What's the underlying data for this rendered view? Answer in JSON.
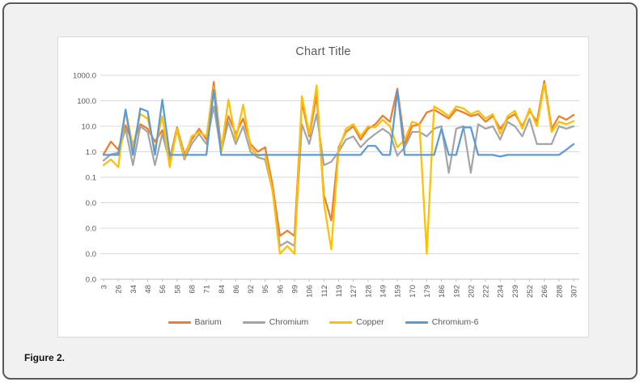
{
  "figure": {
    "caption": "Figure 2."
  },
  "colors": {
    "panel_bg": "#f1f1f2",
    "panel_border": "#58595b",
    "chart_bg": "#ffffff",
    "chart_border": "#d9d9d9",
    "grid": "#d9d9d9",
    "axis": "#bfbfbf",
    "text": "#595959"
  },
  "chart_data": {
    "type": "line",
    "title": "Chart Title",
    "xlabel": "",
    "ylabel": "",
    "y_scale": "log",
    "grid": true,
    "legend_position": "bottom",
    "y_tick_labels": [
      "1000.0",
      "100.0",
      "10.0",
      "1.0",
      "0.1",
      "0.0",
      "0.0",
      "0.0",
      "0.0"
    ],
    "y_tick_values": [
      1000,
      100,
      10,
      1,
      0.1,
      0.01,
      0.001,
      0.0001,
      1e-05
    ],
    "ylim": [
      1e-05,
      1000
    ],
    "x_tick_labels": [
      "3",
      "26",
      "34",
      "48",
      "56",
      "58",
      "68",
      "71",
      "84",
      "86",
      "92",
      "95",
      "96",
      "99",
      "106",
      "112",
      "119",
      "127",
      "128",
      "149",
      "159",
      "170",
      "179",
      "186",
      "192",
      "202",
      "222",
      "234",
      "239",
      "252",
      "266",
      "288",
      "307"
    ],
    "x_label_interval": 2,
    "points_per_series": 65,
    "series": [
      {
        "name": "Barium",
        "color": "#ED7D31",
        "values": [
          0.8,
          2.5,
          1.2,
          11,
          2,
          12,
          8,
          2.5,
          7,
          0.5,
          9,
          0.8,
          3,
          8,
          3,
          550,
          1.5,
          25,
          5,
          20,
          2,
          1,
          1.5,
          0.05,
          0.0005,
          0.0008,
          0.0005,
          90,
          4,
          160,
          0.02,
          0.002,
          1.5,
          6,
          10,
          3,
          8,
          12,
          26,
          15,
          300,
          2,
          10,
          12,
          35,
          45,
          30,
          20,
          45,
          35,
          25,
          30,
          15,
          25,
          8,
          20,
          30,
          10,
          40,
          15,
          600,
          8,
          25,
          18,
          28
        ]
      },
      {
        "name": "Chromium",
        "color": "#A5A5A5",
        "values": [
          0.45,
          0.8,
          0.9,
          8,
          0.3,
          10,
          6,
          0.3,
          5,
          0.4,
          7,
          0.5,
          2,
          5,
          2,
          60,
          1,
          15,
          2,
          10,
          1,
          0.6,
          0.5,
          0.03,
          0.0002,
          0.0003,
          0.0002,
          12,
          2,
          30,
          0.3,
          0.4,
          1,
          3,
          4,
          1.5,
          3,
          5,
          8,
          5,
          0.7,
          1.5,
          6,
          6,
          4,
          8,
          10,
          0.15,
          8,
          10,
          0.15,
          12,
          8,
          10,
          3,
          15,
          10,
          4,
          20,
          2,
          2,
          2,
          10,
          8,
          10
        ]
      },
      {
        "name": "Copper",
        "color": "#FFC000",
        "values": [
          0.3,
          0.5,
          0.25,
          45,
          1.5,
          30,
          20,
          1.2,
          25,
          0.25,
          8,
          0.6,
          4,
          6,
          4,
          350,
          1,
          110,
          3,
          70,
          1.5,
          0.7,
          0.8,
          0.03,
          0.0001,
          0.0002,
          0.0001,
          150,
          5,
          400,
          0.01,
          0.00015,
          1.2,
          8,
          12,
          4,
          10,
          9,
          18,
          10,
          1.5,
          3,
          15,
          12,
          0.0001,
          60,
          40,
          25,
          60,
          50,
          30,
          40,
          20,
          30,
          5,
          25,
          40,
          8,
          50,
          10,
          450,
          6,
          15,
          12,
          16
        ]
      },
      {
        "name": "Chromium-6",
        "color": "#5B9BD5",
        "values": [
          0.75,
          0.75,
          0.75,
          45,
          0.75,
          50,
          38,
          0.75,
          110,
          0.75,
          0.75,
          0.75,
          0.75,
          0.75,
          0.75,
          270,
          0.75,
          0.75,
          0.75,
          0.75,
          0.75,
          0.75,
          0.75,
          0.75,
          0.75,
          0.75,
          0.75,
          0.75,
          0.75,
          0.75,
          0.75,
          0.75,
          0.75,
          0.75,
          0.75,
          0.75,
          1.7,
          1.7,
          0.75,
          0.75,
          250,
          0.75,
          0.75,
          0.75,
          0.75,
          0.75,
          8,
          0.75,
          0.75,
          9,
          9,
          0.75,
          0.75,
          0.75,
          0.65,
          0.75,
          0.75,
          0.75,
          0.75,
          0.75,
          0.75,
          0.75,
          0.75,
          1.2,
          2
        ]
      }
    ]
  }
}
